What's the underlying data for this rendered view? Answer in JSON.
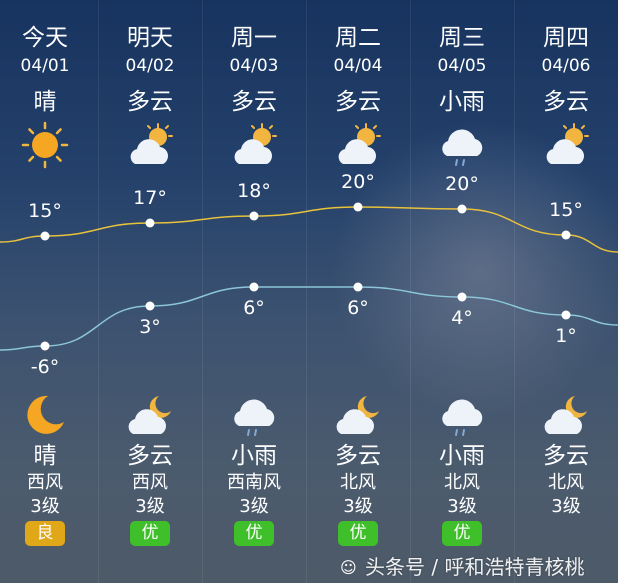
{
  "days": [
    {
      "day": "今天",
      "date": "04/01",
      "cond": "晴",
      "icon": "sun-icon",
      "high": "15°",
      "low": "-6°",
      "night_icon": "moon-icon",
      "night_cond": "晴",
      "wind": "西风",
      "level": "3级",
      "aqi": "良",
      "aqi_color": "#e0a818"
    },
    {
      "day": "明天",
      "date": "04/02",
      "cond": "多云",
      "icon": "partly-cloudy-icon",
      "high": "17°",
      "low": "3°",
      "night_icon": "cloudy-night-icon",
      "night_cond": "多云",
      "wind": "西风",
      "level": "3级",
      "aqi": "优",
      "aqi_color": "#3fbf2a"
    },
    {
      "day": "周一",
      "date": "04/03",
      "cond": "多云",
      "icon": "partly-cloudy-icon",
      "high": "18°",
      "low": "6°",
      "night_icon": "rain-icon",
      "night_cond": "小雨",
      "wind": "西南风",
      "level": "3级",
      "aqi": "优",
      "aqi_color": "#3fbf2a"
    },
    {
      "day": "周二",
      "date": "04/04",
      "cond": "多云",
      "icon": "partly-cloudy-icon",
      "high": "20°",
      "low": "6°",
      "night_icon": "cloudy-night-icon",
      "night_cond": "多云",
      "wind": "北风",
      "level": "3级",
      "aqi": "优",
      "aqi_color": "#3fbf2a"
    },
    {
      "day": "周三",
      "date": "04/05",
      "cond": "小雨",
      "icon": "rain-icon",
      "high": "20°",
      "low": "4°",
      "night_icon": "rain-icon",
      "night_cond": "小雨",
      "wind": "北风",
      "level": "3级",
      "aqi": "优",
      "aqi_color": "#3fbf2a"
    },
    {
      "day": "周四",
      "date": "04/06",
      "cond": "多云",
      "icon": "partly-cloudy-icon",
      "high": "15°",
      "low": "1°",
      "night_icon": "cloudy-night-icon",
      "night_cond": "多云",
      "wind": "北风",
      "level": "3级",
      "aqi": "",
      "aqi_color": "#3fbf2a"
    }
  ],
  "colors": {
    "high_line": "#e8c23c",
    "low_line": "#8cc6d8"
  },
  "watermark": {
    "text": "头条号 / 呼和浩特青核桃",
    "logo_text": "青核桃"
  }
}
